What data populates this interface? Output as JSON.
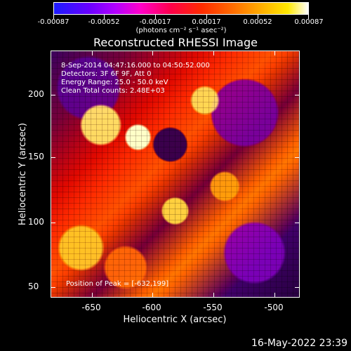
{
  "colorbar": {
    "labels": [
      "-0.00087",
      "-0.00052",
      "-0.00017",
      "0.00017",
      "0.00052",
      "0.00087"
    ],
    "unit": "(photons cm⁻² s⁻¹ asec⁻²)"
  },
  "title": "Reconstructed RHESSI Image",
  "plot": {
    "overlay": [
      "8-Sep-2014 04:47:16.000 to 04:50:52.000",
      "Detectors: 3F 6F 9F, Att 0",
      "Energy Range: 25.0 - 50.0 keV",
      "Clean    Total counts: 2.48E+03"
    ],
    "peak": "Position of Peak = [-632,199]"
  },
  "axes": {
    "x_ticks": [
      "-650",
      "-600",
      "-550",
      "-500"
    ],
    "y_ticks": [
      "200",
      "150",
      "100",
      "50"
    ],
    "xlabel": "Heliocentric X (arcsec)",
    "ylabel": "Heliocentric Y (arcsec)"
  },
  "footer": {
    "timestamp": "16-May-2022 23:39"
  }
}
